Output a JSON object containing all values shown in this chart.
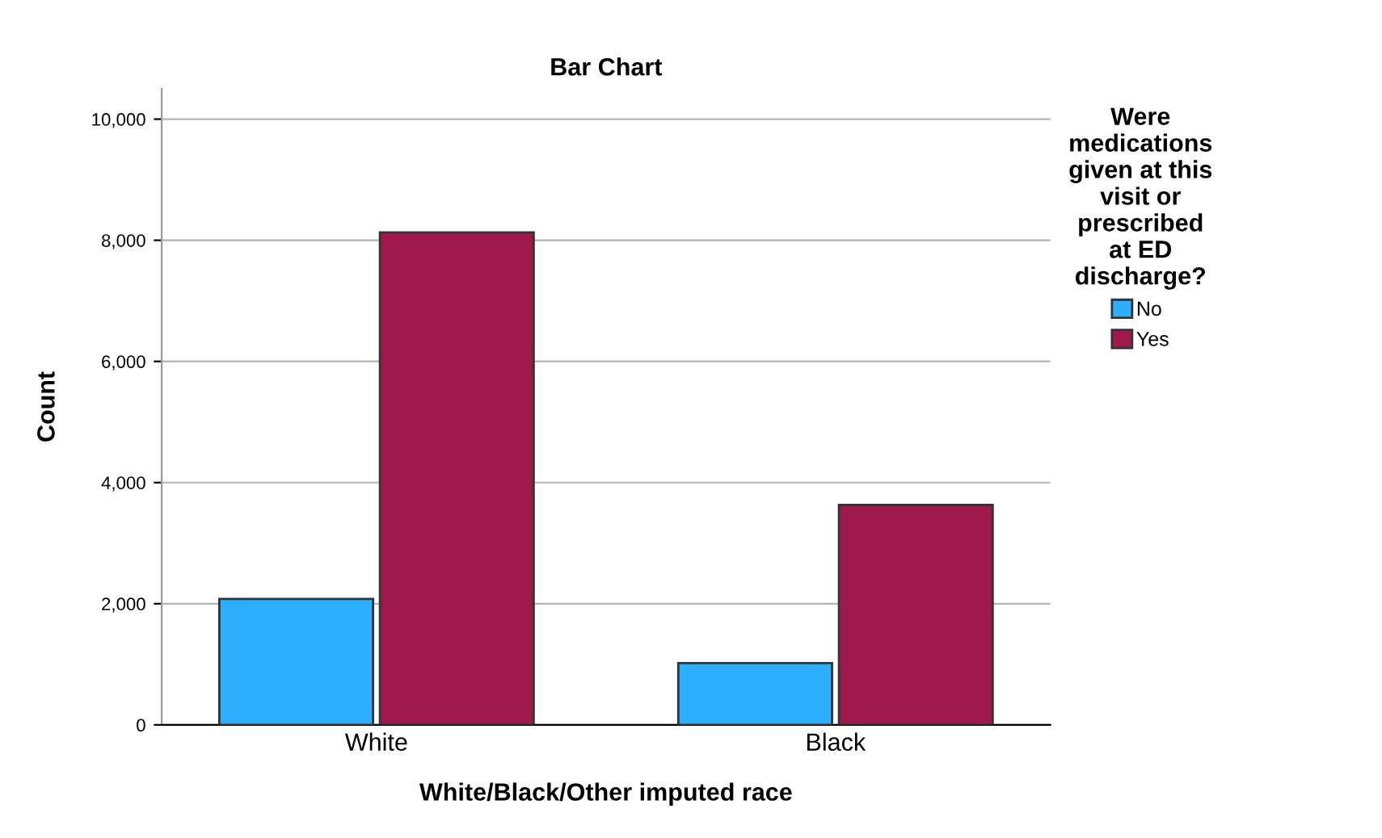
{
  "chart_data": {
    "type": "bar",
    "title": "Bar Chart",
    "xlabel": "White/Black/Other imputed race",
    "ylabel": "Count",
    "legend_title": "Were\nmedications\ngiven at this\nvisit or\nprescribed\nat ED\ndischarge?",
    "categories": [
      "White",
      "Black"
    ],
    "series": [
      {
        "name": "No",
        "color": "#2eaffe",
        "values": [
          2080,
          1020
        ]
      },
      {
        "name": "Yes",
        "color": "#a0194d",
        "values": [
          8130,
          3630
        ]
      }
    ],
    "ylim": [
      0,
      10500
    ],
    "yticks": [
      {
        "value": 0,
        "label": "0"
      },
      {
        "value": 2000,
        "label": "2,000"
      },
      {
        "value": 4000,
        "label": "4,000"
      },
      {
        "value": 6000,
        "label": "6,000"
      },
      {
        "value": 8000,
        "label": "8,000"
      },
      {
        "value": 10000,
        "label": "10,000"
      }
    ],
    "grid": "y",
    "legend": "top right"
  }
}
